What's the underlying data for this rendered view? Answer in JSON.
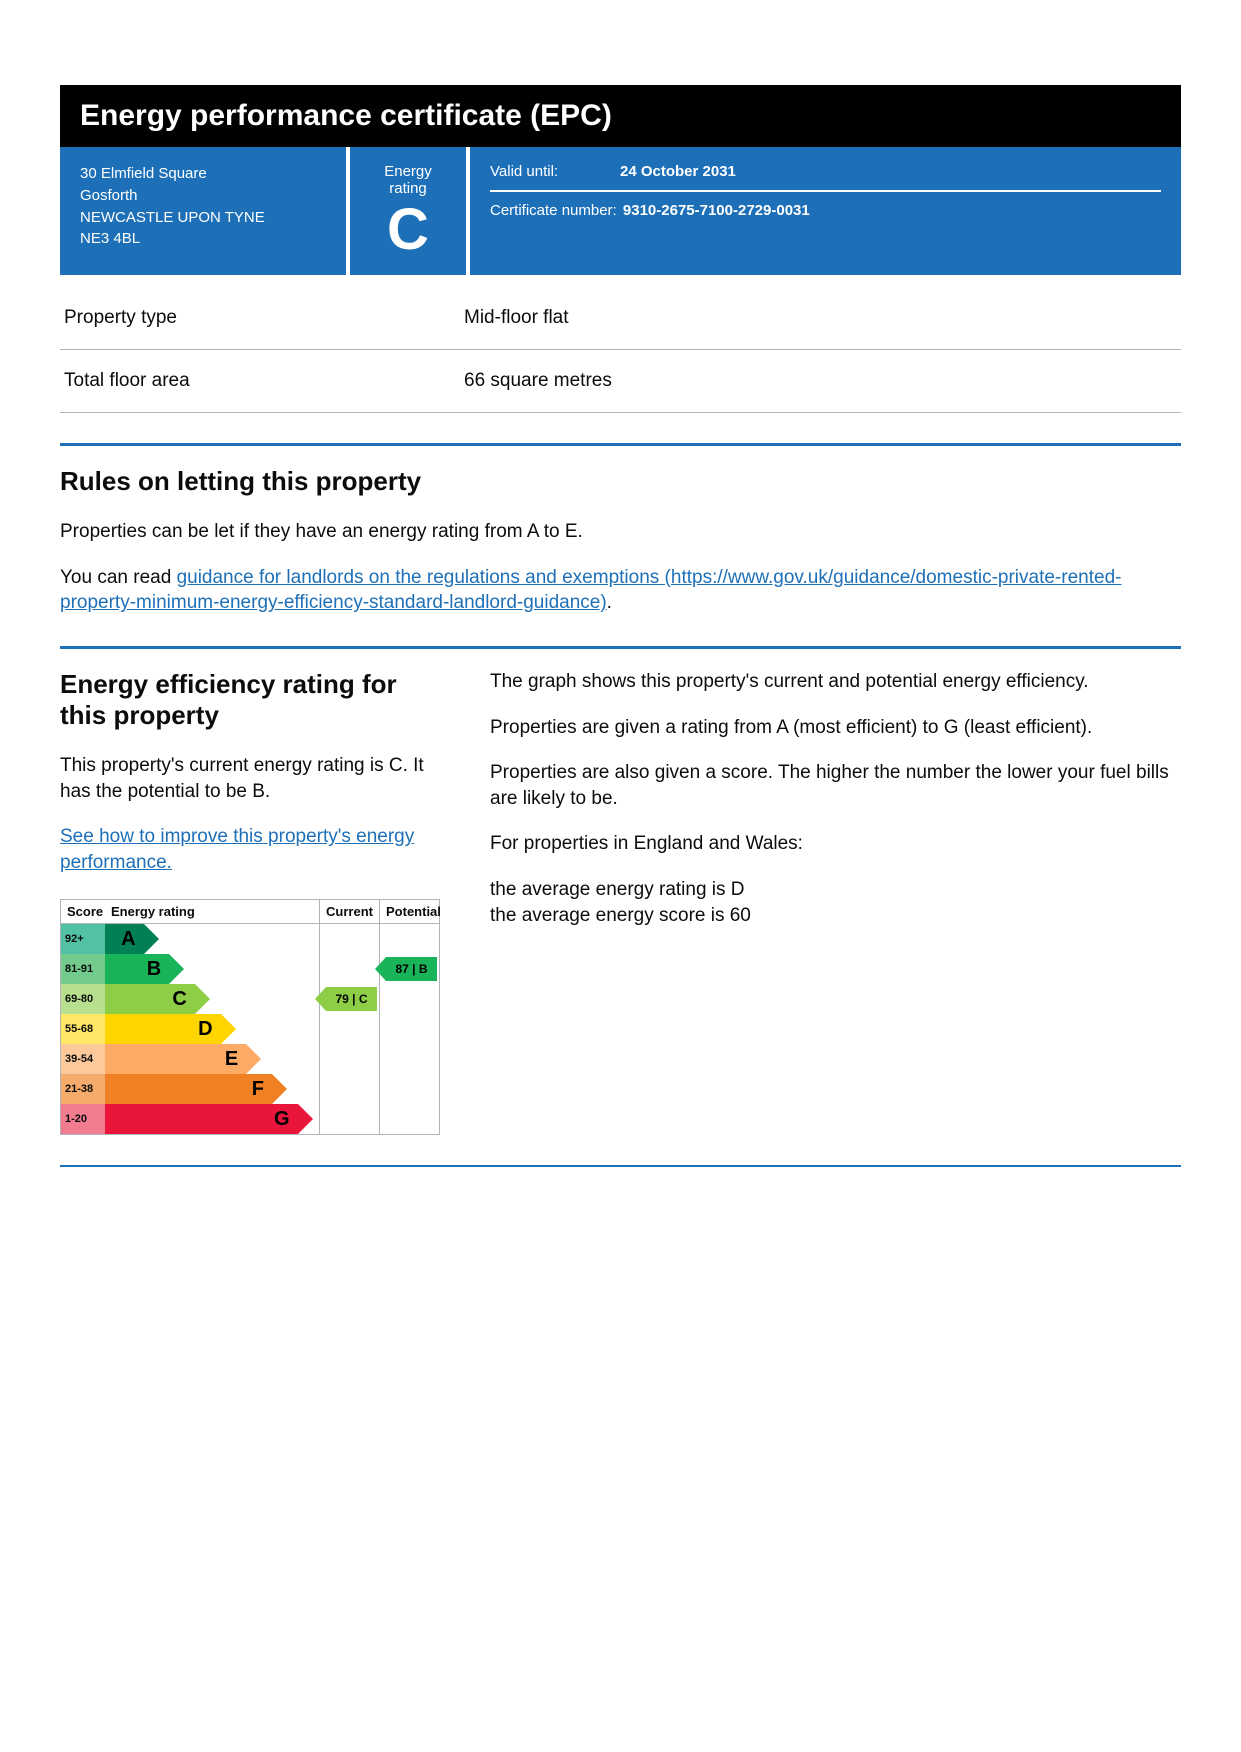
{
  "title": "Energy performance certificate (EPC)",
  "address": {
    "line1": "30 Elmfield Square",
    "line2": "Gosforth",
    "line3": "NEWCASTLE UPON TYNE",
    "line4": "NE3 4BL"
  },
  "rating_box": {
    "label": "Energy rating",
    "letter": "C"
  },
  "meta": {
    "valid_label": "Valid until:",
    "valid_value": "24 October 2031",
    "cert_label": "Certificate number:",
    "cert_value": "9310-2675-7100-2729-0031"
  },
  "properties": [
    {
      "k": "Property type",
      "v": "Mid-floor flat"
    },
    {
      "k": "Total floor area",
      "v": "66 square metres"
    }
  ],
  "letting": {
    "heading": "Rules on letting this property",
    "p1": "Properties can be let if they have an energy rating from A to E.",
    "p2_pre": "You can read ",
    "p2_link": "guidance for landlords on the regulations and exemptions (https://www.gov.uk/guidance/domestic-private-rented-property-minimum-energy-efficiency-standard-landlord-guidance)",
    "p2_post": "."
  },
  "eff": {
    "heading": "Energy efficiency rating for this property",
    "p1": "This property's current energy rating is C. It has the potential to be B.",
    "link": "See how to improve this property's energy performance.",
    "r1": "The graph shows this property's current and potential energy efficiency.",
    "r2": "Properties are given a rating from A (most efficient) to G (least efficient).",
    "r3": "Properties are also given a score. The higher the number the lower your fuel bills are likely to be.",
    "r4": "For properties in England and Wales:",
    "r5a": "the average energy rating is D",
    "r5b": "the average energy score is 60"
  },
  "chart": {
    "head": {
      "score": "Score",
      "rating": "Energy rating",
      "current": "Current",
      "potential": "Potential"
    },
    "bands": [
      {
        "score": "92+",
        "letter": "A",
        "widthPct": 18,
        "color": "#008054",
        "scoreBg": "#53c2a4"
      },
      {
        "score": "81-91",
        "letter": "B",
        "widthPct": 30,
        "color": "#19b459",
        "scoreBg": "#72ca8c"
      },
      {
        "score": "69-80",
        "letter": "C",
        "widthPct": 42,
        "color": "#8dce46",
        "scoreBg": "#b7df8d"
      },
      {
        "score": "55-68",
        "letter": "D",
        "widthPct": 54,
        "color": "#ffd500",
        "scoreBg": "#ffe666"
      },
      {
        "score": "39-54",
        "letter": "E",
        "widthPct": 66,
        "color": "#fcaa65",
        "scoreBg": "#fdc99b"
      },
      {
        "score": "21-38",
        "letter": "F",
        "widthPct": 78,
        "color": "#ef8023",
        "scoreBg": "#f4ab6b"
      },
      {
        "score": "1-20",
        "letter": "G",
        "widthPct": 90,
        "color": "#e9153b",
        "scoreBg": "#f17b8f"
      }
    ],
    "current": {
      "band": "C",
      "score": 79,
      "label": "79 |  C",
      "color": "#8dce46"
    },
    "potential": {
      "band": "B",
      "score": 87,
      "label": "87 |  B",
      "color": "#19b459"
    }
  },
  "colors": {
    "brand_blue": "#1d70b8",
    "link_blue": "#1d70b8",
    "black": "#000000",
    "grey_border": "#b1b4b6"
  }
}
